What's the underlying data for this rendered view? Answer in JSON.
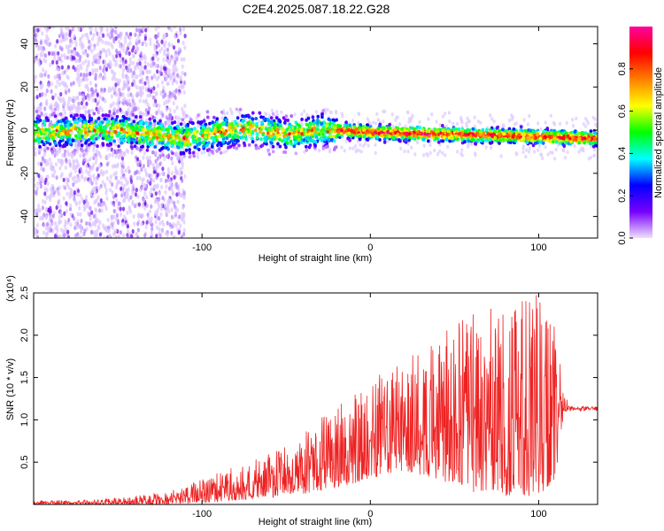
{
  "title": "C2E4.2025.087.18.22.G28",
  "chart_data": [
    {
      "type": "heatmap",
      "xlabel": "Height of straight line (km)",
      "ylabel": "Frequency (Hz)",
      "xlim": [
        -200,
        135
      ],
      "ylim": [
        -50,
        48
      ],
      "x_ticks": [
        -100,
        0,
        100
      ],
      "y_ticks": [
        -40,
        -20,
        0,
        20,
        40
      ],
      "colorbar": {
        "label": "Normalized spectral amplitude",
        "range": [
          0,
          1
        ],
        "ticks": [
          "0.0",
          "0.2",
          "0.4",
          "0.6",
          "0.8"
        ],
        "colors": [
          "#f0e0ff",
          "#7700ff",
          "#0000ff",
          "#00ffff",
          "#00ff00",
          "#ffff00",
          "#ff8000",
          "#ff0000",
          "#ff00a0"
        ]
      },
      "ridge": {
        "frequency": [
          [
            -200,
            -1
          ],
          [
            -150,
            0
          ],
          [
            -110,
            -4
          ],
          [
            -90,
            -1
          ],
          [
            -70,
            1
          ],
          [
            -50,
            -2
          ],
          [
            -30,
            0
          ],
          [
            -20,
            0
          ],
          [
            0,
            -1
          ],
          [
            50,
            -2
          ],
          [
            100,
            -3
          ],
          [
            135,
            -4
          ]
        ],
        "max_amplitude_from_km": -20
      }
    },
    {
      "type": "line",
      "xlabel": "Height of straight line (km)",
      "ylabel": "SNR (10 * v/v)",
      "y_multiplier": "(x10⁴)",
      "xlim": [
        -200,
        135
      ],
      "ylim": [
        0,
        2.5
      ],
      "x_ticks": [
        -100,
        0,
        100
      ],
      "y_ticks": [
        "0.5",
        "1.0",
        "1.5",
        "2.0",
        "2.5"
      ],
      "series": [
        {
          "color": "#ee2222",
          "envelope": {
            "x": [
              -200,
              -160,
              -140,
              -120,
              -100,
              -80,
              -60,
              -40,
              -20,
              0,
              20,
              40,
              60,
              80,
              100,
              110,
              115,
              120,
              135
            ],
            "lower": [
              0.0,
              0.0,
              0.0,
              0.0,
              0.02,
              0.05,
              0.08,
              0.12,
              0.2,
              0.3,
              0.4,
              0.3,
              0.15,
              0.1,
              0.1,
              0.3,
              1.1,
              1.1,
              1.1
            ],
            "upper": [
              0.05,
              0.06,
              0.1,
              0.15,
              0.3,
              0.45,
              0.6,
              0.85,
              1.2,
              1.45,
              1.75,
              2.0,
              2.3,
              2.35,
              2.5,
              2.2,
              1.3,
              1.2,
              1.18
            ]
          }
        }
      ]
    }
  ]
}
